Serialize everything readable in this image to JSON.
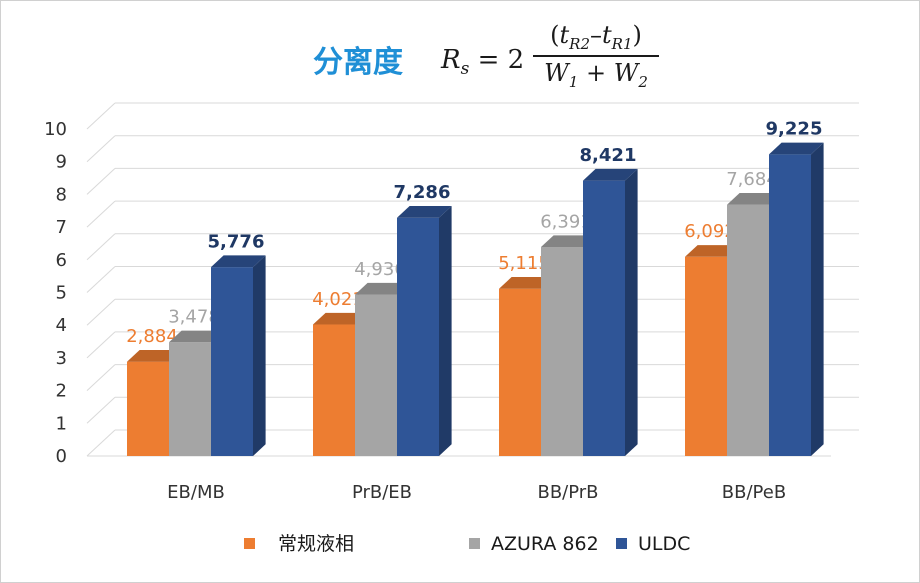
{
  "header": {
    "title": "分离度",
    "formula": {
      "lhs_symbol": "R",
      "lhs_sub": "s",
      "equals": "=",
      "coefficient": "2",
      "num_open": "(",
      "num_t1": "t",
      "num_t1_sub": "R2",
      "num_minus": "–",
      "num_t2": "t",
      "num_t2_sub": "R1",
      "num_close": ")",
      "den_w1": "W",
      "den_w1_sub": "1",
      "den_plus": "+",
      "den_w2": "W",
      "den_w2_sub": "2"
    }
  },
  "chart_data": {
    "type": "bar",
    "title": "",
    "xlabel": "",
    "ylabel": "",
    "categories": [
      "EB/MB",
      "PrB/EB",
      "BB/PrB",
      "BB/PeB"
    ],
    "series": [
      {
        "name": "常规液相",
        "values": [
          2.884,
          4.021,
          5.115,
          6.092
        ],
        "labels": [
          "2,884",
          "4,021",
          "5,115",
          "6,092"
        ],
        "color": "#ed7d31"
      },
      {
        "name": "AZURA 862",
        "values": [
          3.478,
          4.936,
          6.391,
          7.684
        ],
        "labels": [
          "3,478",
          "4,936",
          "6,391",
          "7,684"
        ],
        "color": "#a5a5a5"
      },
      {
        "name": "ULDC",
        "values": [
          5.776,
          7.286,
          8.421,
          9.225
        ],
        "labels": [
          "5,776",
          "7,286",
          "8,421",
          "9,225"
        ],
        "color": "#2f5597"
      }
    ],
    "yticks": [
      "0",
      "1",
      "2",
      "3",
      "4",
      "5",
      "6",
      "7",
      "8",
      "9",
      "10"
    ],
    "ylim": [
      0,
      10
    ],
    "grid": true,
    "legend": "bottom",
    "style": "3d-clustered-column"
  }
}
